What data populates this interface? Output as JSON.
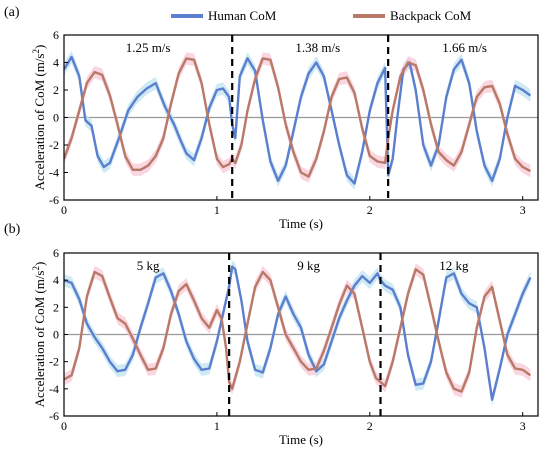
{
  "legend": [
    {
      "name": "Human CoM",
      "color": "#5b7fce"
    },
    {
      "name": "Backpack CoM",
      "color": "#b87968"
    }
  ],
  "chart_data": [
    {
      "type": "line",
      "panel_label": "(a)",
      "xlabel": "Time (s)",
      "ylabel_main": "Acceleration of CoM (m/s",
      "ylabel_sup": "2",
      "ylabel_end": ")",
      "xlim": [
        0,
        3.1
      ],
      "ylim": [
        -6,
        6
      ],
      "xticks": [
        0,
        1,
        2,
        3
      ],
      "yticks": [
        -6,
        -4,
        -2,
        0,
        2,
        4,
        6
      ],
      "dividers": [
        1.1,
        2.12
      ],
      "segment_labels": [
        {
          "text": "1.25 m/s",
          "x": 0.55
        },
        {
          "text": "1.38 m/s",
          "x": 1.66
        },
        {
          "text": "1.66 m/s",
          "x": 2.62
        }
      ],
      "series": [
        {
          "name": "Human CoM",
          "color": "#5b7fce",
          "band": "#bfe3f2",
          "x": [
            0,
            0.05,
            0.1,
            0.14,
            0.18,
            0.22,
            0.26,
            0.3,
            0.36,
            0.42,
            0.48,
            0.54,
            0.6,
            0.66,
            0.72,
            0.76,
            0.8,
            0.85,
            0.9,
            0.95,
            1.0,
            1.04,
            1.08,
            1.1,
            1.12,
            1.15,
            1.2,
            1.25,
            1.3,
            1.35,
            1.4,
            1.45,
            1.5,
            1.55,
            1.6,
            1.65,
            1.7,
            1.75,
            1.8,
            1.85,
            1.9,
            1.95,
            2.0,
            2.05,
            2.1,
            2.12,
            2.15,
            2.18,
            2.22,
            2.26,
            2.3,
            2.35,
            2.4,
            2.45,
            2.5,
            2.55,
            2.6,
            2.65,
            2.7,
            2.75,
            2.8,
            2.85,
            2.9,
            2.95,
            3.0,
            3.05
          ],
          "y": [
            3.5,
            4.4,
            3.0,
            -0.2,
            -0.6,
            -2.8,
            -3.6,
            -3.3,
            -1.5,
            0.5,
            1.5,
            2.1,
            2.5,
            0.8,
            -0.5,
            -1.6,
            -2.6,
            -3.1,
            -1.5,
            0.7,
            2.0,
            2.1,
            1.5,
            -0.5,
            -1.5,
            3.0,
            4.3,
            3.4,
            -0.2,
            -3.2,
            -4.6,
            -3.5,
            -1.0,
            1.5,
            3.2,
            4.0,
            3.0,
            0.5,
            -2.0,
            -4.2,
            -4.8,
            -2.5,
            0.5,
            2.5,
            3.6,
            -4.2,
            -3.0,
            0.0,
            3.5,
            4.0,
            2.0,
            -2.0,
            -3.5,
            -2.0,
            1.5,
            3.5,
            4.2,
            2.5,
            -1.0,
            -3.5,
            -4.6,
            -3.0,
            0.0,
            2.3,
            2.0,
            1.6
          ]
        },
        {
          "name": "Backpack CoM",
          "color": "#b87968",
          "band": "#f8c8d6",
          "x": [
            0,
            0.05,
            0.1,
            0.15,
            0.2,
            0.25,
            0.3,
            0.35,
            0.4,
            0.45,
            0.5,
            0.55,
            0.6,
            0.65,
            0.7,
            0.75,
            0.8,
            0.85,
            0.9,
            0.95,
            1.0,
            1.04,
            1.08,
            1.1,
            1.12,
            1.16,
            1.2,
            1.25,
            1.3,
            1.35,
            1.4,
            1.45,
            1.5,
            1.55,
            1.6,
            1.65,
            1.7,
            1.75,
            1.8,
            1.85,
            1.9,
            1.95,
            2.0,
            2.05,
            2.1,
            2.12,
            2.15,
            2.2,
            2.25,
            2.3,
            2.35,
            2.4,
            2.45,
            2.5,
            2.55,
            2.6,
            2.65,
            2.7,
            2.75,
            2.8,
            2.85,
            2.9,
            2.95,
            3.0,
            3.05
          ],
          "y": [
            -3.0,
            -1.5,
            0.5,
            2.5,
            3.3,
            3.1,
            1.6,
            -0.5,
            -2.8,
            -3.8,
            -3.8,
            -3.5,
            -2.8,
            -1.5,
            1.0,
            3.2,
            4.3,
            4.2,
            2.5,
            -0.5,
            -3.0,
            -3.6,
            -3.4,
            -3.0,
            -3.3,
            -2.0,
            0.5,
            2.8,
            4.3,
            4.2,
            2.2,
            -0.5,
            -2.5,
            -4.0,
            -4.3,
            -3.0,
            -1.0,
            1.5,
            2.8,
            2.9,
            1.8,
            -0.8,
            -2.8,
            -3.2,
            -3.3,
            -1.5,
            0.5,
            3.0,
            4.0,
            3.8,
            2.0,
            -0.5,
            -2.5,
            -3.1,
            -3.5,
            -2.5,
            -0.5,
            1.5,
            2.2,
            2.3,
            1.0,
            -1.2,
            -3.0,
            -3.6,
            -3.9
          ]
        }
      ]
    },
    {
      "type": "line",
      "panel_label": "(b)",
      "xlabel": "Time (s)",
      "ylabel_main": "Acceleration of CoM (m/s",
      "ylabel_sup": "2",
      "ylabel_end": ")",
      "xlim": [
        0,
        3.1
      ],
      "ylim": [
        -6,
        6
      ],
      "xticks": [
        0,
        1,
        2,
        3
      ],
      "yticks": [
        -6,
        -4,
        -2,
        0,
        2,
        4,
        6
      ],
      "dividers": [
        1.08,
        2.07
      ],
      "segment_labels": [
        {
          "text": "5 kg",
          "x": 0.55
        },
        {
          "text": "9 kg",
          "x": 1.6
        },
        {
          "text": "12 kg",
          "x": 2.55
        }
      ],
      "series": [
        {
          "name": "Human CoM",
          "color": "#5b7fce",
          "band": "#bfe3f2",
          "x": [
            0,
            0.05,
            0.1,
            0.15,
            0.2,
            0.25,
            0.3,
            0.35,
            0.4,
            0.45,
            0.5,
            0.55,
            0.6,
            0.65,
            0.7,
            0.75,
            0.8,
            0.85,
            0.9,
            0.95,
            1.0,
            1.05,
            1.08,
            1.1,
            1.12,
            1.16,
            1.2,
            1.25,
            1.3,
            1.35,
            1.4,
            1.45,
            1.5,
            1.55,
            1.6,
            1.65,
            1.7,
            1.75,
            1.8,
            1.85,
            1.9,
            1.95,
            2.0,
            2.05,
            2.07,
            2.1,
            2.15,
            2.2,
            2.25,
            2.3,
            2.35,
            2.4,
            2.45,
            2.5,
            2.55,
            2.6,
            2.65,
            2.7,
            2.75,
            2.8,
            2.85,
            2.9,
            2.95,
            3.0,
            3.05
          ],
          "y": [
            4.0,
            3.8,
            2.6,
            0.8,
            -0.2,
            -1.0,
            -2.0,
            -2.7,
            -2.6,
            -1.5,
            0.5,
            2.3,
            4.2,
            4.5,
            3.2,
            1.5,
            -0.5,
            -1.8,
            -2.6,
            -2.5,
            -0.5,
            2.0,
            3.5,
            5.0,
            4.8,
            2.5,
            -0.5,
            -2.6,
            -2.8,
            -1.0,
            1.5,
            2.8,
            1.5,
            0.5,
            -1.5,
            -2.7,
            -2.2,
            -0.5,
            1.2,
            2.5,
            3.6,
            4.3,
            3.8,
            4.5,
            4.0,
            3.6,
            3.3,
            2.0,
            -1.5,
            -3.7,
            -3.6,
            -2.0,
            1.0,
            4.2,
            4.5,
            3.0,
            2.3,
            2.0,
            -1.0,
            -4.8,
            -2.5,
            0.0,
            1.5,
            3.0,
            4.2
          ]
        },
        {
          "name": "Backpack CoM",
          "color": "#b87968",
          "band": "#f8c8d6",
          "x": [
            0,
            0.05,
            0.1,
            0.15,
            0.2,
            0.25,
            0.3,
            0.35,
            0.4,
            0.45,
            0.5,
            0.55,
            0.6,
            0.65,
            0.7,
            0.75,
            0.8,
            0.85,
            0.9,
            0.95,
            1.0,
            1.03,
            1.06,
            1.08,
            1.1,
            1.15,
            1.2,
            1.25,
            1.3,
            1.35,
            1.4,
            1.45,
            1.5,
            1.55,
            1.6,
            1.65,
            1.7,
            1.75,
            1.8,
            1.85,
            1.9,
            1.95,
            2.0,
            2.04,
            2.07,
            2.1,
            2.15,
            2.2,
            2.25,
            2.3,
            2.35,
            2.4,
            2.45,
            2.5,
            2.55,
            2.6,
            2.65,
            2.7,
            2.75,
            2.8,
            2.85,
            2.9,
            2.95,
            3.0,
            3.05
          ],
          "y": [
            -3.3,
            -3.0,
            -1.0,
            2.8,
            4.6,
            4.3,
            2.7,
            1.2,
            0.8,
            -0.3,
            -1.5,
            -2.6,
            -2.5,
            -1.0,
            1.5,
            3.2,
            3.7,
            2.5,
            1.2,
            0.5,
            1.8,
            1.2,
            -1.0,
            -3.5,
            -4.0,
            -2.0,
            0.8,
            3.5,
            4.6,
            4.0,
            2.0,
            0.0,
            -1.0,
            -2.0,
            -2.6,
            -2.5,
            -1.2,
            0.5,
            2.2,
            3.6,
            3.0,
            0.5,
            -2.0,
            -3.2,
            -3.5,
            -3.8,
            -2.0,
            0.5,
            3.0,
            4.8,
            4.4,
            2.0,
            -0.5,
            -2.8,
            -4.0,
            -4.2,
            -2.8,
            0.5,
            2.8,
            3.5,
            1.0,
            -1.5,
            -2.5,
            -2.6,
            -3.0
          ]
        }
      ]
    }
  ]
}
